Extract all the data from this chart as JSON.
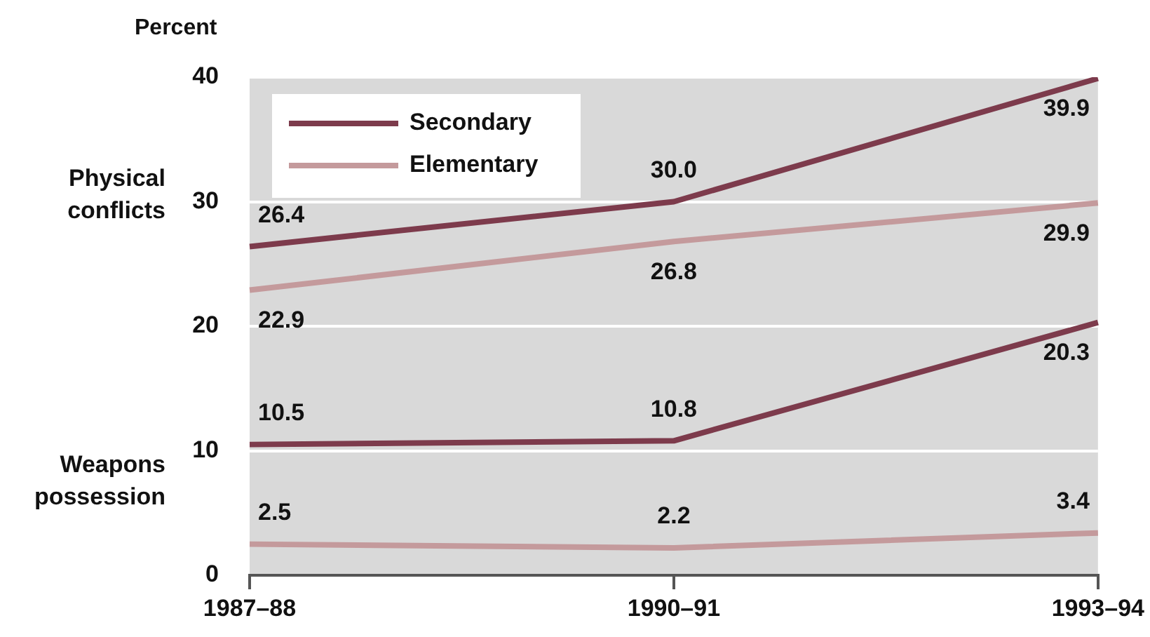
{
  "chart_data": {
    "type": "line",
    "ylabel": "Percent",
    "categories": [
      "1987–88",
      "1990–91",
      "1993–94"
    ],
    "series": [
      {
        "name": "Secondary",
        "color": "#7d3b4c",
        "values": [
          26.4,
          30,
          39.9
        ],
        "value_labels": [
          "26.4",
          "30.0",
          "39.9"
        ]
      },
      {
        "name": "Elementary",
        "color": "#c49a9c",
        "values": [
          22.9,
          26.8,
          29.9
        ],
        "value_labels": [
          "22.9",
          "26.8",
          "29.9"
        ]
      },
      {
        "color": "#7d3b4c",
        "values": [
          10.5,
          10.8,
          20.3
        ],
        "value_labels": [
          "10.5",
          "10.8",
          "20.3"
        ]
      },
      {
        "color": "#c49a9c",
        "values": [
          2.5,
          2.2,
          3.4
        ],
        "value_labels": [
          "2.5",
          "2.2",
          "3.4"
        ]
      }
    ],
    "ylim": [
      0,
      40
    ],
    "yticks": [
      0,
      10,
      20,
      30,
      40
    ],
    "grid": "y",
    "legend": "top left",
    "marker": "none",
    "line_style": "solid",
    "annotations": [
      "Physical conflicts",
      "Weapons possession"
    ]
  }
}
